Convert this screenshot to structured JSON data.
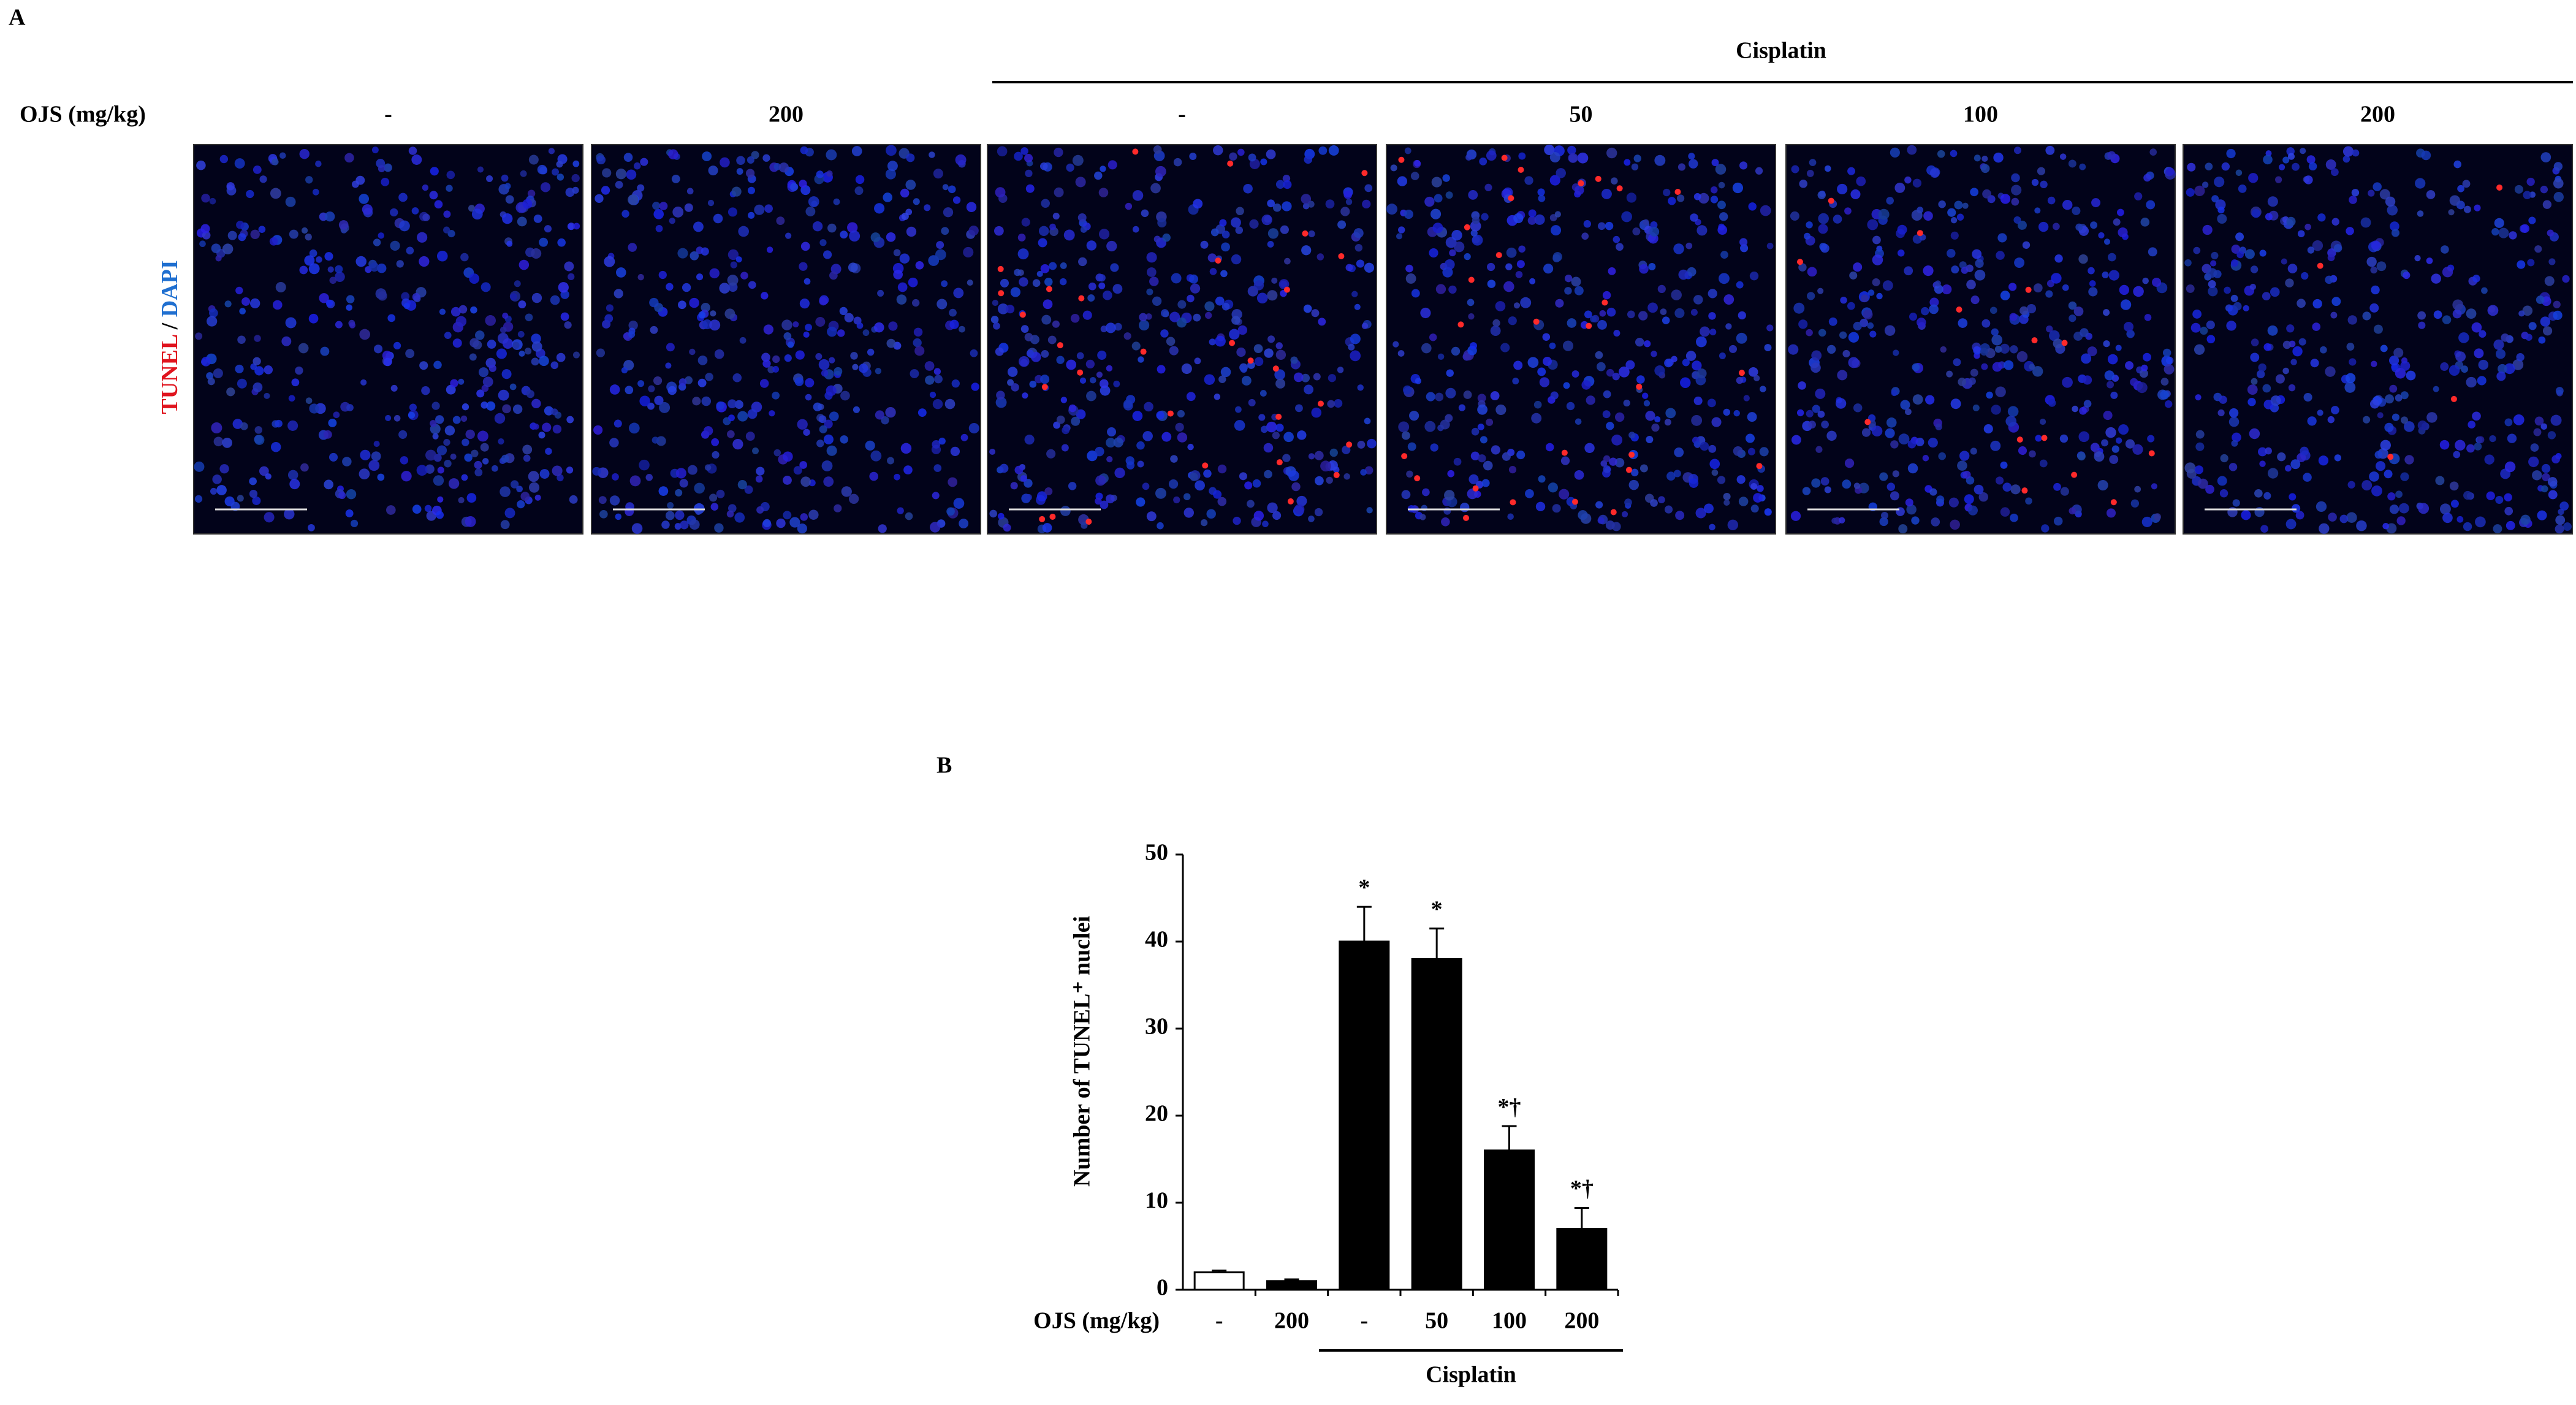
{
  "panel_a": {
    "label": "A",
    "group_label": "Cisplatin",
    "row_label": "OJS (mg/kg)",
    "columns": [
      "-",
      "200",
      "-",
      "50",
      "100",
      "200"
    ],
    "stain_label": {
      "tunel": "TUNEL",
      "separator": "/",
      "dapi": "DAPI"
    }
  },
  "chart_data": {
    "type": "bar",
    "panel_label": "B",
    "ylabel": "Number of TUNEL⁺ nuclei",
    "xlabel": "OJS (mg/kg)",
    "group_label": "Cisplatin",
    "categories": [
      "-",
      "200",
      "-",
      "50",
      "100",
      "200"
    ],
    "values": [
      2,
      1,
      40,
      38,
      16,
      7
    ],
    "errors": [
      0.2,
      0.2,
      4,
      3.5,
      2.8,
      2.4
    ],
    "colors": [
      "#ffffff",
      "#000000",
      "#000000",
      "#000000",
      "#000000",
      "#000000"
    ],
    "annotations": [
      null,
      null,
      "*",
      "*",
      "*†",
      "*†"
    ],
    "ylim": [
      0,
      50
    ],
    "yticks": [
      0,
      10,
      20,
      30,
      40,
      50
    ]
  }
}
